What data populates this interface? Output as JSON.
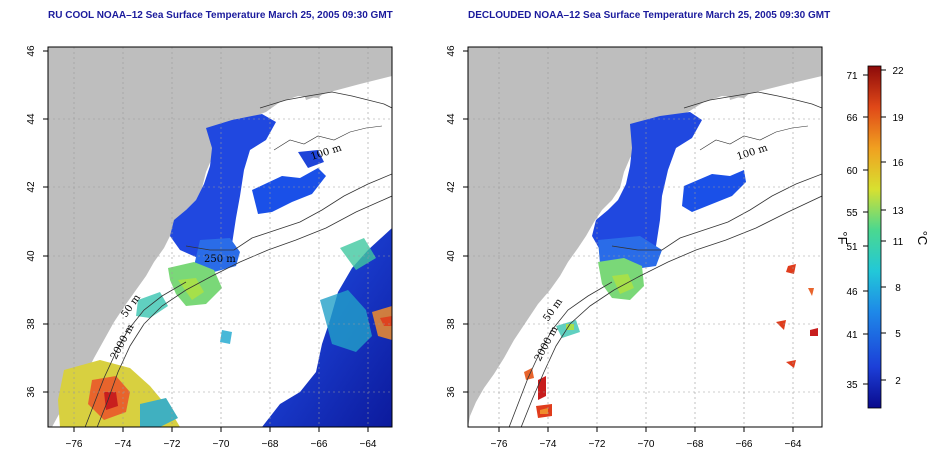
{
  "left_panel": {
    "title": "RU COOL NOAA–12 Sea Surface Temperature March 25, 2005 09:30 GMT",
    "contour_labels": [
      "100 m",
      "250 m",
      "50 m",
      "2000 m"
    ]
  },
  "right_panel": {
    "title": "DECLOUDED NOAA–12 Sea Surface Temperature March 25, 2005 09:30 GMT",
    "contour_labels": [
      "100 m",
      "50 m",
      "2000 m"
    ]
  },
  "x_ticks": [
    "−76",
    "−74",
    "−72",
    "−70",
    "−68",
    "−66",
    "−64"
  ],
  "y_ticks": [
    "46",
    "44",
    "42",
    "40",
    "38",
    "36"
  ],
  "colorbar": {
    "fahrenheit_ticks": [
      "71",
      "66",
      "60",
      "55",
      "51",
      "46",
      "41",
      "35"
    ],
    "celsius_ticks": [
      "22",
      "19",
      "16",
      "13",
      "11",
      "8",
      "5",
      "2"
    ],
    "fahrenheit_label": "°F",
    "celsius_label": "°C"
  },
  "colors": {
    "land": "#bebebe",
    "water_cold": "#1f3fd9",
    "water_warm": "#c81e1e",
    "title": "#1a1a9c"
  }
}
